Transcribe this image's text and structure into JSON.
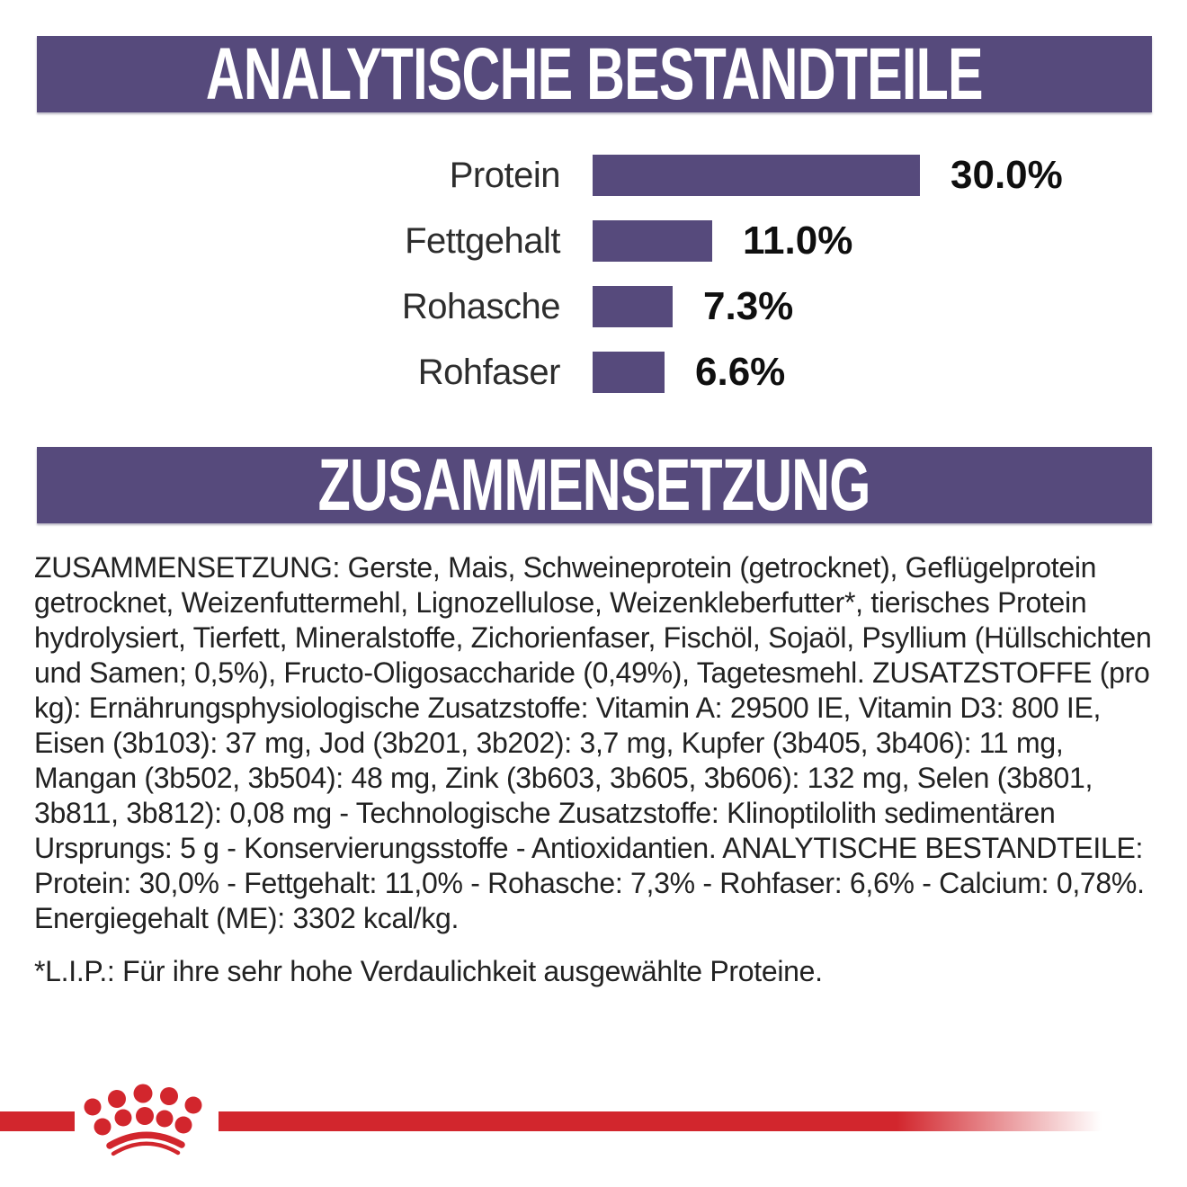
{
  "colors": {
    "purple": "#564a7c",
    "red": "#d2262d",
    "text": "#222222"
  },
  "banners": {
    "analytical": "ANALYTISCHE BESTANDTEILE",
    "composition": "ZUSAMMENSETZUNG"
  },
  "chart_data": {
    "type": "bar",
    "orientation": "horizontal",
    "title": "ANALYTISCHE BESTANDTEILE",
    "categories": [
      "Protein",
      "Fettgehalt",
      "Rohasche",
      "Rohfaser"
    ],
    "values": [
      30.0,
      11.0,
      7.3,
      6.6
    ],
    "value_labels": [
      "30.0%",
      "11.0%",
      "7.3%",
      "6.6%"
    ],
    "xlim": [
      0,
      30
    ],
    "bar_color": "#564a7c",
    "grid": false,
    "legend": false
  },
  "composition": {
    "text": "ZUSAMMENSETZUNG: Gerste, Mais, Schweineprotein (getrocknet), Geflügelprotein getrocknet, Weizenfuttermehl, Lignozellulose, Weizenkleberfutter*, tierisches Protein hydrolysiert, Tierfett, Mineralstoffe, Zichorienfaser, Fischöl, Sojaöl, Psyllium (Hüllschichten und Samen; 0,5%), Fructo-Oligosaccharide (0,49%), Tagetesmehl. ZUSATZSTOFFE (pro kg): Ernährungsphysiologische Zusatzstoffe: Vitamin A: 29500 IE, Vitamin D3: 800 IE, Eisen (3b103): 37 mg, Jod (3b201, 3b202): 3,7 mg, Kupfer (3b405, 3b406): 11 mg, Mangan (3b502, 3b504): 48 mg, Zink (3b603, 3b605, 3b606): 132 mg, Selen (3b801, 3b811, 3b812): 0,08 mg - Technologische Zusatzstoffe: Klinoptilolith sedimentären Ursprungs: 5 g - Konservierungsstoffe - Antioxidantien. ANALYTISCHE BESTANDTEILE: Protein: 30,0% - Fettgehalt: 11,0% - Rohasche: 7,3% - Rohfaser: 6,6% - Calcium: 0,78%. Energiegehalt (ME): 3302 kcal/kg."
  },
  "footnote": "*L.I.P.: Für ihre sehr hohe Verdaulichkeit ausgewählte Proteine.",
  "logo": {
    "name": "royal-canin-crown",
    "color": "#d2262d"
  }
}
